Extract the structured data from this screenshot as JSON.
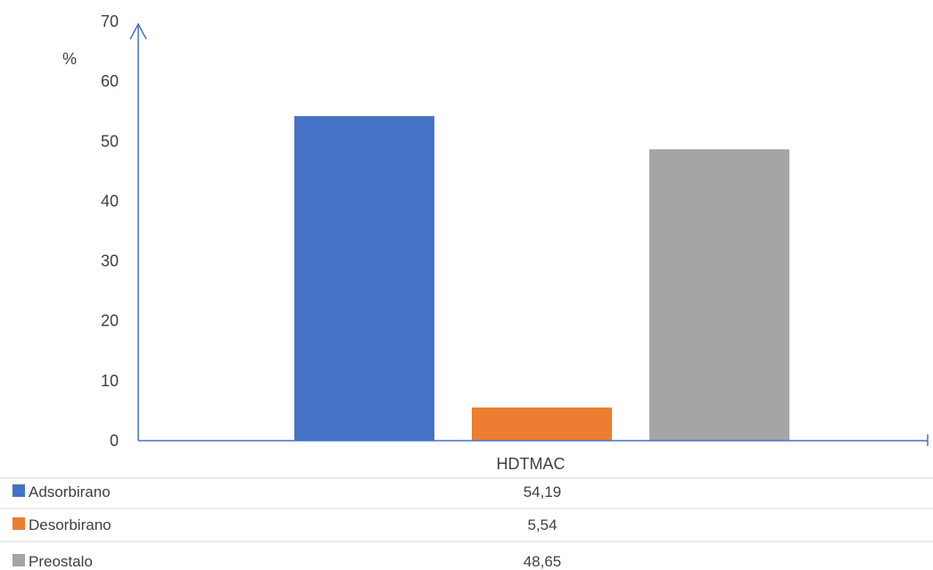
{
  "chart_data": {
    "type": "bar",
    "ylabel": "%",
    "ylim": [
      0,
      70
    ],
    "yticks": [
      "0",
      "10",
      "20",
      "30",
      "40",
      "50",
      "60",
      "70"
    ],
    "categories": [
      "HDTMAC"
    ],
    "grid": false,
    "legend": "data-table-bottom",
    "series": [
      {
        "name": "Adsorbirano",
        "values": [
          54.19
        ],
        "label": "54,19",
        "color": "#4472C4"
      },
      {
        "name": "Desorbirano",
        "values": [
          5.54
        ],
        "label": "5,54",
        "color": "#ED7D31"
      },
      {
        "name": "Preostalo",
        "values": [
          48.65
        ],
        "label": "48,65",
        "color": "#A5A5A5"
      }
    ],
    "axis_color": "#4472C4"
  }
}
